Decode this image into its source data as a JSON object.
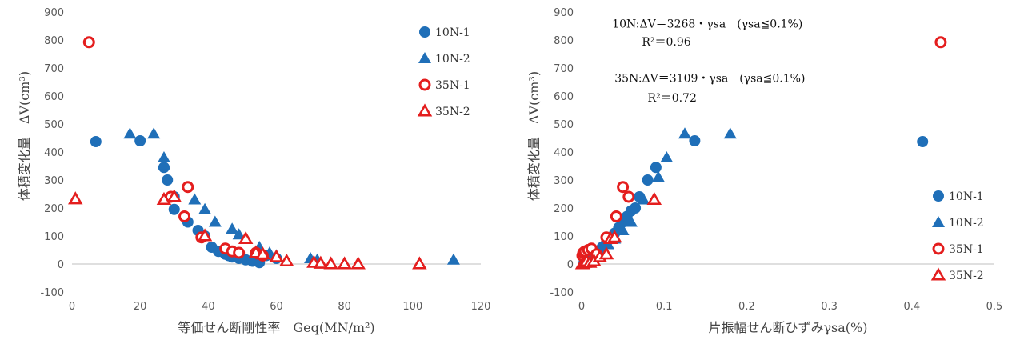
{
  "colors": {
    "blue": "#1f6fb8",
    "red": "#e41e1e"
  },
  "chart_data": [
    {
      "type": "scatter",
      "xlabel": "等価せん断剛性率　Geq(MN/m²)",
      "ylabel": "体積変化量　ΔV(cm³)",
      "xlim": [
        0,
        120
      ],
      "ylim": [
        -100,
        900
      ],
      "xticks": [
        "0",
        "20",
        "40",
        "60",
        "80",
        "100",
        "120"
      ],
      "yticks": [
        "-100",
        "0",
        "100",
        "200",
        "300",
        "400",
        "500",
        "600",
        "700",
        "800",
        "900"
      ],
      "grid": false,
      "legend_position": "top-right",
      "series": [
        {
          "name": "10N-1",
          "marker": "circle-filled",
          "color": "#1f6fb8",
          "points": [
            [
              7,
              437
            ],
            [
              20,
              440
            ],
            [
              27,
              345
            ],
            [
              28,
              300
            ],
            [
              30,
              240
            ],
            [
              30,
              195
            ],
            [
              34,
              150
            ],
            [
              37,
              120
            ],
            [
              39,
              100
            ],
            [
              41,
              60
            ],
            [
              43,
              45
            ],
            [
              45,
              35
            ],
            [
              47,
              25
            ],
            [
              49,
              20
            ],
            [
              51,
              15
            ],
            [
              53,
              10
            ],
            [
              55,
              5
            ],
            [
              57,
              30
            ],
            [
              60,
              20
            ],
            [
              46,
              30
            ]
          ]
        },
        {
          "name": "10N-2",
          "marker": "triangle-filled",
          "color": "#1f6fb8",
          "points": [
            [
              17,
              465
            ],
            [
              24,
              465
            ],
            [
              27,
              380
            ],
            [
              27,
              355
            ],
            [
              36,
              230
            ],
            [
              39,
              195
            ],
            [
              42,
              150
            ],
            [
              47,
              125
            ],
            [
              49,
              105
            ],
            [
              55,
              60
            ],
            [
              58,
              40
            ],
            [
              60,
              30
            ],
            [
              70,
              20
            ],
            [
              72,
              15
            ],
            [
              112,
              15
            ]
          ]
        },
        {
          "name": "35N-1",
          "marker": "circle-open",
          "color": "#e41e1e",
          "points": [
            [
              5,
              792
            ],
            [
              34,
              275
            ],
            [
              29,
              240
            ],
            [
              33,
              170
            ],
            [
              38,
              95
            ],
            [
              45,
              55
            ],
            [
              47,
              45
            ],
            [
              49,
              40
            ],
            [
              54,
              40
            ],
            [
              56,
              30
            ]
          ]
        },
        {
          "name": "35N-2",
          "marker": "triangle-open",
          "color": "#e41e1e",
          "points": [
            [
              1,
              232
            ],
            [
              27,
              230
            ],
            [
              30,
              240
            ],
            [
              39,
              100
            ],
            [
              51,
              90
            ],
            [
              54,
              40
            ],
            [
              56,
              35
            ],
            [
              60,
              25
            ],
            [
              63,
              10
            ],
            [
              71,
              5
            ],
            [
              73,
              2
            ],
            [
              76,
              0
            ],
            [
              80,
              0
            ],
            [
              84,
              0
            ],
            [
              102,
              0
            ]
          ]
        }
      ]
    },
    {
      "type": "scatter",
      "xlabel": "片振幅せん断ひずみγsa(%)",
      "ylabel": "体積変化量　ΔV(cm³)",
      "xlim": [
        0,
        0.5
      ],
      "ylim": [
        -100,
        900
      ],
      "xticks": [
        "0",
        "0.1",
        "0.2",
        "0.3",
        "0.4",
        "0.5"
      ],
      "yticks": [
        "-100",
        "0",
        "100",
        "200",
        "300",
        "400",
        "500",
        "600",
        "700",
        "800",
        "900"
      ],
      "grid": false,
      "legend_position": "bottom-right",
      "annotations": [
        "10N:ΔV＝3268・γsa　(γsa≦0.1%)",
        "R²＝0.96",
        "35N:ΔV＝3109・γsa　(γsa≦0.1%)",
        "R²＝0.72"
      ],
      "series": [
        {
          "name": "10N-1",
          "marker": "circle-filled",
          "color": "#1f6fb8",
          "points": [
            [
              0.003,
              5
            ],
            [
              0.006,
              15
            ],
            [
              0.01,
              20
            ],
            [
              0.015,
              30
            ],
            [
              0.02,
              45
            ],
            [
              0.025,
              60
            ],
            [
              0.03,
              75
            ],
            [
              0.035,
              90
            ],
            [
              0.04,
              110
            ],
            [
              0.045,
              130
            ],
            [
              0.05,
              150
            ],
            [
              0.055,
              170
            ],
            [
              0.06,
              190
            ],
            [
              0.065,
              200
            ],
            [
              0.07,
              240
            ],
            [
              0.08,
              300
            ],
            [
              0.09,
              345
            ],
            [
              0.137,
              440
            ],
            [
              0.413,
              437
            ]
          ]
        },
        {
          "name": "10N-2",
          "marker": "triangle-filled",
          "color": "#1f6fb8",
          "points": [
            [
              0.004,
              10
            ],
            [
              0.008,
              15
            ],
            [
              0.012,
              25
            ],
            [
              0.018,
              35
            ],
            [
              0.025,
              50
            ],
            [
              0.032,
              70
            ],
            [
              0.04,
              90
            ],
            [
              0.05,
              120
            ],
            [
              0.06,
              150
            ],
            [
              0.075,
              230
            ],
            [
              0.093,
              310
            ],
            [
              0.103,
              380
            ],
            [
              0.125,
              465
            ],
            [
              0.18,
              465
            ]
          ]
        },
        {
          "name": "35N-1",
          "marker": "circle-open",
          "color": "#e41e1e",
          "points": [
            [
              0.001,
              30
            ],
            [
              0.002,
              40
            ],
            [
              0.004,
              45
            ],
            [
              0.008,
              50
            ],
            [
              0.012,
              55
            ],
            [
              0.018,
              35
            ],
            [
              0.03,
              95
            ],
            [
              0.042,
              170
            ],
            [
              0.05,
              275
            ],
            [
              0.057,
              240
            ],
            [
              0.435,
              792
            ]
          ]
        },
        {
          "name": "35N-2",
          "marker": "triangle-open",
          "color": "#e41e1e",
          "points": [
            [
              0.001,
              0
            ],
            [
              0.002,
              2
            ],
            [
              0.004,
              5
            ],
            [
              0.006,
              10
            ],
            [
              0.01,
              5
            ],
            [
              0.015,
              10
            ],
            [
              0.022,
              25
            ],
            [
              0.03,
              35
            ],
            [
              0.035,
              90
            ],
            [
              0.04,
              95
            ],
            [
              0.088,
              230
            ]
          ]
        }
      ]
    }
  ]
}
